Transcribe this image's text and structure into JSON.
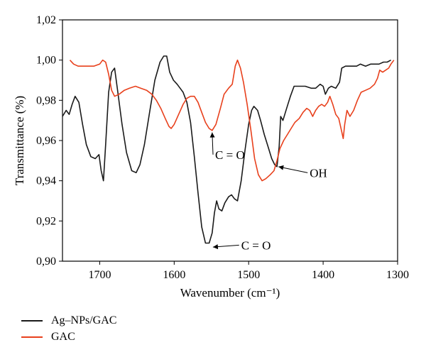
{
  "chart_data": {
    "type": "line",
    "xlabel": "Wavenumber (cm⁻¹)",
    "ylabel": "Transmittance (%)",
    "xlim": [
      1750,
      1300
    ],
    "ylim": [
      0.9,
      1.02
    ],
    "x_ticks": [
      1700,
      1600,
      1500,
      1400,
      1300
    ],
    "y_ticks": [
      0.9,
      0.92,
      0.94,
      0.96,
      0.98,
      1.0,
      1.02
    ],
    "y_tick_labels": [
      "0,90",
      "0,92",
      "0,94",
      "0,96",
      "0,98",
      "1,00",
      "1,02"
    ],
    "x_reversed": true,
    "grid": false,
    "legend_position": "bottom-left",
    "series": [
      {
        "name": "Ag–NPs/GAC",
        "color": "#1a1a1a",
        "points": [
          [
            1750,
            0.972
          ],
          [
            1745,
            0.975
          ],
          [
            1741,
            0.973
          ],
          [
            1737,
            0.978
          ],
          [
            1733,
            0.982
          ],
          [
            1728,
            0.979
          ],
          [
            1723,
            0.968
          ],
          [
            1718,
            0.958
          ],
          [
            1712,
            0.952
          ],
          [
            1706,
            0.951
          ],
          [
            1701,
            0.953
          ],
          [
            1698,
            0.945
          ],
          [
            1695,
            0.94
          ],
          [
            1692,
            0.958
          ],
          [
            1688,
            0.984
          ],
          [
            1684,
            0.994
          ],
          [
            1680,
            0.996
          ],
          [
            1676,
            0.985
          ],
          [
            1670,
            0.968
          ],
          [
            1664,
            0.954
          ],
          [
            1657,
            0.945
          ],
          [
            1651,
            0.944
          ],
          [
            1646,
            0.948
          ],
          [
            1640,
            0.958
          ],
          [
            1633,
            0.974
          ],
          [
            1626,
            0.99
          ],
          [
            1619,
            0.999
          ],
          [
            1614,
            1.002
          ],
          [
            1610,
            1.002
          ],
          [
            1606,
            0.994
          ],
          [
            1601,
            0.99
          ],
          [
            1596,
            0.988
          ],
          [
            1592,
            0.986
          ],
          [
            1588,
            0.984
          ],
          [
            1583,
            0.979
          ],
          [
            1578,
            0.969
          ],
          [
            1573,
            0.952
          ],
          [
            1568,
            0.934
          ],
          [
            1563,
            0.917
          ],
          [
            1558,
            0.909
          ],
          [
            1553,
            0.909
          ],
          [
            1549,
            0.914
          ],
          [
            1546,
            0.924
          ],
          [
            1543,
            0.93
          ],
          [
            1540,
            0.926
          ],
          [
            1536,
            0.925
          ],
          [
            1532,
            0.929
          ],
          [
            1527,
            0.932
          ],
          [
            1523,
            0.933
          ],
          [
            1519,
            0.931
          ],
          [
            1515,
            0.93
          ],
          [
            1510,
            0.94
          ],
          [
            1505,
            0.955
          ],
          [
            1500,
            0.968
          ],
          [
            1496,
            0.975
          ],
          [
            1493,
            0.977
          ],
          [
            1488,
            0.975
          ],
          [
            1484,
            0.97
          ],
          [
            1479,
            0.963
          ],
          [
            1474,
            0.957
          ],
          [
            1469,
            0.951
          ],
          [
            1465,
            0.948
          ],
          [
            1462,
            0.947
          ],
          [
            1459,
            0.957
          ],
          [
            1457,
            0.972
          ],
          [
            1454,
            0.97
          ],
          [
            1449,
            0.976
          ],
          [
            1444,
            0.982
          ],
          [
            1439,
            0.987
          ],
          [
            1432,
            0.987
          ],
          [
            1424,
            0.987
          ],
          [
            1416,
            0.986
          ],
          [
            1410,
            0.986
          ],
          [
            1404,
            0.988
          ],
          [
            1400,
            0.987
          ],
          [
            1397,
            0.983
          ],
          [
            1393,
            0.986
          ],
          [
            1389,
            0.987
          ],
          [
            1383,
            0.986
          ],
          [
            1378,
            0.989
          ],
          [
            1375,
            0.996
          ],
          [
            1370,
            0.997
          ],
          [
            1362,
            0.997
          ],
          [
            1355,
            0.997
          ],
          [
            1350,
            0.998
          ],
          [
            1343,
            0.997
          ],
          [
            1336,
            0.998
          ],
          [
            1330,
            0.998
          ],
          [
            1325,
            0.998
          ],
          [
            1319,
            0.999
          ],
          [
            1314,
            0.999
          ],
          [
            1309,
            1.0
          ]
        ]
      },
      {
        "name": "GAC",
        "color": "#e8401c",
        "points": [
          [
            1740,
            1.0
          ],
          [
            1735,
            0.998
          ],
          [
            1729,
            0.997
          ],
          [
            1722,
            0.997
          ],
          [
            1715,
            0.997
          ],
          [
            1708,
            0.997
          ],
          [
            1700,
            0.998
          ],
          [
            1696,
            1.0
          ],
          [
            1692,
            0.999
          ],
          [
            1688,
            0.993
          ],
          [
            1684,
            0.985
          ],
          [
            1680,
            0.982
          ],
          [
            1674,
            0.983
          ],
          [
            1667,
            0.985
          ],
          [
            1660,
            0.986
          ],
          [
            1652,
            0.987
          ],
          [
            1645,
            0.986
          ],
          [
            1637,
            0.985
          ],
          [
            1630,
            0.983
          ],
          [
            1624,
            0.98
          ],
          [
            1618,
            0.976
          ],
          [
            1612,
            0.971
          ],
          [
            1607,
            0.967
          ],
          [
            1604,
            0.966
          ],
          [
            1600,
            0.968
          ],
          [
            1594,
            0.973
          ],
          [
            1588,
            0.978
          ],
          [
            1583,
            0.981
          ],
          [
            1578,
            0.982
          ],
          [
            1573,
            0.982
          ],
          [
            1568,
            0.979
          ],
          [
            1563,
            0.974
          ],
          [
            1558,
            0.969
          ],
          [
            1553,
            0.966
          ],
          [
            1549,
            0.965
          ],
          [
            1544,
            0.968
          ],
          [
            1538,
            0.976
          ],
          [
            1533,
            0.983
          ],
          [
            1527,
            0.986
          ],
          [
            1522,
            0.988
          ],
          [
            1518,
            0.997
          ],
          [
            1515,
            1.0
          ],
          [
            1511,
            0.996
          ],
          [
            1507,
            0.989
          ],
          [
            1502,
            0.978
          ],
          [
            1497,
            0.965
          ],
          [
            1492,
            0.951
          ],
          [
            1487,
            0.943
          ],
          [
            1482,
            0.94
          ],
          [
            1477,
            0.941
          ],
          [
            1471,
            0.943
          ],
          [
            1466,
            0.945
          ],
          [
            1462,
            0.95
          ],
          [
            1458,
            0.956
          ],
          [
            1453,
            0.96
          ],
          [
            1448,
            0.963
          ],
          [
            1443,
            0.966
          ],
          [
            1438,
            0.969
          ],
          [
            1432,
            0.971
          ],
          [
            1427,
            0.974
          ],
          [
            1422,
            0.976
          ],
          [
            1418,
            0.975
          ],
          [
            1414,
            0.972
          ],
          [
            1410,
            0.975
          ],
          [
            1406,
            0.977
          ],
          [
            1402,
            0.978
          ],
          [
            1398,
            0.977
          ],
          [
            1394,
            0.979
          ],
          [
            1391,
            0.982
          ],
          [
            1387,
            0.978
          ],
          [
            1383,
            0.973
          ],
          [
            1379,
            0.971
          ],
          [
            1376,
            0.966
          ],
          [
            1373,
            0.961
          ],
          [
            1371,
            0.968
          ],
          [
            1368,
            0.975
          ],
          [
            1364,
            0.972
          ],
          [
            1359,
            0.975
          ],
          [
            1354,
            0.98
          ],
          [
            1349,
            0.984
          ],
          [
            1343,
            0.985
          ],
          [
            1337,
            0.986
          ],
          [
            1331,
            0.988
          ],
          [
            1327,
            0.991
          ],
          [
            1324,
            0.995
          ],
          [
            1320,
            0.994
          ],
          [
            1316,
            0.995
          ],
          [
            1312,
            0.996
          ],
          [
            1309,
            0.998
          ],
          [
            1305,
            1.0
          ]
        ]
      }
    ],
    "annotations": [
      {
        "text": "C = O",
        "x": 1545,
        "y": 0.953,
        "arrow_to": [
          1549,
          0.964
        ]
      },
      {
        "text": "OH",
        "x": 1418,
        "y": 0.944,
        "arrow_to": [
          1460,
          0.947
        ]
      },
      {
        "text": "C = O",
        "x": 1510,
        "y": 0.908,
        "arrow_to": [
          1548,
          0.907
        ]
      }
    ]
  },
  "legend": {
    "items": [
      {
        "label": "Ag–NPs/GAC",
        "color": "#1a1a1a"
      },
      {
        "label": "GAC",
        "color": "#e8401c"
      }
    ]
  }
}
